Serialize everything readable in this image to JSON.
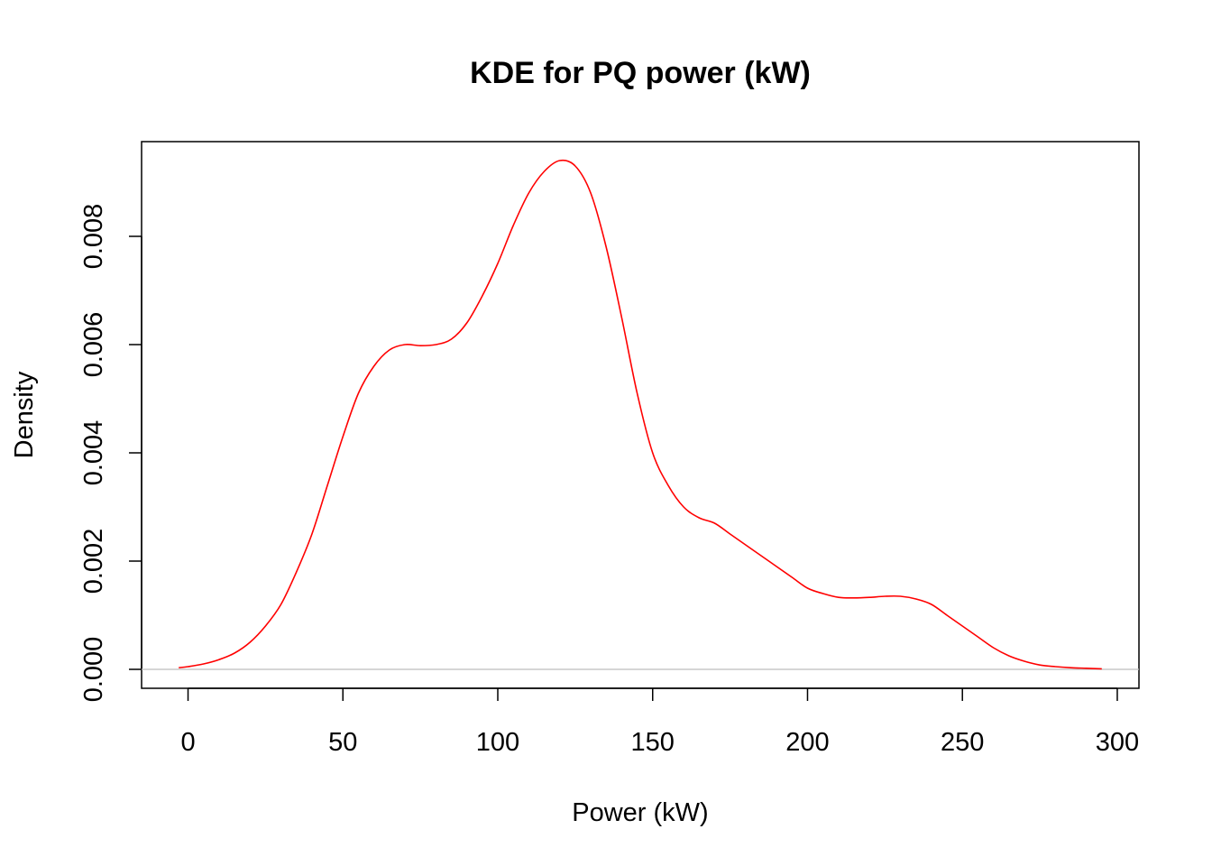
{
  "chart_data": {
    "type": "line",
    "title": "KDE for PQ power (kW)",
    "xlabel": "Power (kW)",
    "ylabel": "Density",
    "xlim": [
      -15,
      307
    ],
    "ylim": [
      -0.00035,
      0.00975
    ],
    "xticks": [
      0,
      50,
      100,
      150,
      200,
      250,
      300
    ],
    "xtick_labels": [
      "0",
      "50",
      "100",
      "150",
      "200",
      "250",
      "300"
    ],
    "yticks": [
      0,
      0.002,
      0.004,
      0.006,
      0.008
    ],
    "ytick_labels": [
      "0.000",
      "0.002",
      "0.004",
      "0.006",
      "0.008"
    ],
    "baseline": 0,
    "baseline_color": "#bebebe",
    "series": [
      {
        "color": "#ff0000",
        "x": [
          -3,
          0,
          5,
          10,
          15,
          20,
          25,
          30,
          35,
          40,
          45,
          50,
          55,
          60,
          65,
          70,
          75,
          80,
          85,
          90,
          95,
          100,
          105,
          110,
          115,
          120,
          125,
          130,
          135,
          140,
          145,
          150,
          155,
          160,
          165,
          170,
          175,
          180,
          185,
          190,
          195,
          200,
          205,
          210,
          215,
          220,
          225,
          230,
          235,
          240,
          245,
          250,
          255,
          260,
          265,
          270,
          275,
          280,
          285,
          290,
          295
        ],
        "y": [
          3e-05,
          5e-05,
          0.0001,
          0.00018,
          0.0003,
          0.0005,
          0.0008,
          0.0012,
          0.0018,
          0.0025,
          0.0034,
          0.0043,
          0.0051,
          0.0056,
          0.0059,
          0.006,
          0.00598,
          0.006,
          0.0061,
          0.0064,
          0.0069,
          0.0075,
          0.0082,
          0.0088,
          0.0092,
          0.0094,
          0.0093,
          0.0088,
          0.0078,
          0.0065,
          0.0051,
          0.004,
          0.0034,
          0.003,
          0.0028,
          0.0027,
          0.0025,
          0.0023,
          0.0021,
          0.0019,
          0.0017,
          0.0015,
          0.0014,
          0.00133,
          0.00132,
          0.00133,
          0.00135,
          0.00135,
          0.0013,
          0.0012,
          0.001,
          0.0008,
          0.0006,
          0.0004,
          0.00025,
          0.00015,
          8e-05,
          5e-05,
          3e-05,
          2e-05,
          1e-05
        ]
      }
    ]
  }
}
